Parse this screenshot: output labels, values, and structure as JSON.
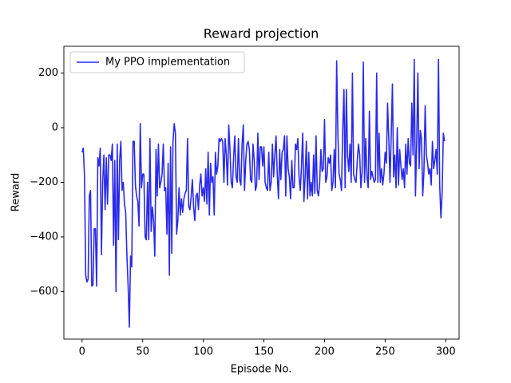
{
  "chart_data": {
    "type": "line",
    "title": "Reward projection",
    "x_label": "Episode No.",
    "y_label": "Reward",
    "legend": "upper left",
    "grid": false,
    "xlim": [
      -15,
      311
    ],
    "ylim": [
      -774,
      298
    ],
    "xticks": [
      0,
      50,
      100,
      150,
      200,
      250,
      300
    ],
    "yticks": [
      {
        "value": -600,
        "label": "−600"
      },
      {
        "value": -400,
        "label": "−400"
      },
      {
        "value": -200,
        "label": "−200"
      },
      0,
      200
    ],
    "x": [
      0,
      1,
      2,
      3,
      4,
      5,
      6,
      7,
      8,
      9,
      10,
      11,
      12,
      13,
      14,
      15,
      16,
      17,
      18,
      19,
      20,
      21,
      22,
      23,
      24,
      25,
      26,
      27,
      28,
      29,
      30,
      31,
      32,
      33,
      34,
      35,
      36,
      37,
      38,
      39,
      40,
      41,
      42,
      43,
      44,
      45,
      46,
      47,
      48,
      49,
      50,
      51,
      52,
      53,
      54,
      55,
      56,
      57,
      58,
      59,
      60,
      61,
      62,
      63,
      64,
      65,
      66,
      67,
      68,
      69,
      70,
      71,
      72,
      73,
      74,
      75,
      76,
      77,
      78,
      79,
      80,
      81,
      82,
      83,
      84,
      85,
      86,
      87,
      88,
      89,
      90,
      91,
      92,
      93,
      94,
      95,
      96,
      97,
      98,
      99,
      100,
      101,
      102,
      103,
      104,
      105,
      106,
      107,
      108,
      109,
      110,
      111,
      112,
      113,
      114,
      115,
      116,
      117,
      118,
      119,
      120,
      121,
      122,
      123,
      124,
      125,
      126,
      127,
      128,
      129,
      130,
      131,
      132,
      133,
      134,
      135,
      136,
      137,
      138,
      139,
      140,
      141,
      142,
      143,
      144,
      145,
      146,
      147,
      148,
      149,
      150,
      151,
      152,
      153,
      154,
      155,
      156,
      157,
      158,
      159,
      160,
      161,
      162,
      163,
      164,
      165,
      166,
      167,
      168,
      169,
      170,
      171,
      172,
      173,
      174,
      175,
      176,
      177,
      178,
      179,
      180,
      181,
      182,
      183,
      184,
      185,
      186,
      187,
      188,
      189,
      190,
      191,
      192,
      193,
      194,
      195,
      196,
      197,
      198,
      199,
      200,
      201,
      202,
      203,
      204,
      205,
      206,
      207,
      208,
      209,
      210,
      211,
      212,
      213,
      214,
      215,
      216,
      217,
      218,
      219,
      220,
      221,
      222,
      223,
      224,
      225,
      226,
      227,
      228,
      229,
      230,
      231,
      232,
      233,
      234,
      235,
      236,
      237,
      238,
      239,
      240,
      241,
      242,
      243,
      244,
      245,
      246,
      247,
      248,
      249,
      250,
      251,
      252,
      253,
      254,
      255,
      256,
      257,
      258,
      259,
      260,
      261,
      262,
      263,
      264,
      265,
      266,
      267,
      268,
      269,
      270,
      271,
      272,
      273,
      274,
      275,
      276,
      277,
      278,
      279,
      280,
      281,
      282,
      283,
      284,
      285,
      286,
      287,
      288,
      289,
      290,
      291,
      292,
      293,
      294,
      295,
      296,
      297,
      298,
      299
    ],
    "series": [
      {
        "name": "My PPO implementation",
        "color": "#2a2aea",
        "values": [
          -90,
          -75,
          -175,
          -540,
          -565,
          -555,
          -250,
          -230,
          -580,
          -575,
          -370,
          -370,
          -580,
          -110,
          -140,
          -75,
          -465,
          -200,
          -100,
          -300,
          -110,
          -280,
          -100,
          -100,
          -120,
          -60,
          -430,
          -120,
          -600,
          -60,
          -410,
          -120,
          -50,
          -230,
          -200,
          -280,
          -310,
          -470,
          -580,
          -730,
          -470,
          -510,
          -50,
          -50,
          -210,
          -250,
          -270,
          -360,
          15,
          -220,
          -170,
          -170,
          -400,
          -410,
          -200,
          -410,
          -40,
          -380,
          -290,
          -340,
          -470,
          -80,
          -250,
          -60,
          -220,
          -200,
          -170,
          -60,
          -230,
          -220,
          -390,
          -130,
          -540,
          -70,
          -460,
          -50,
          15,
          -20,
          -390,
          -340,
          -220,
          -320,
          -260,
          -310,
          -260,
          -240,
          -230,
          -40,
          -290,
          -300,
          -250,
          -190,
          -290,
          -340,
          -250,
          -240,
          -300,
          -210,
          -170,
          -250,
          -220,
          -270,
          -150,
          -280,
          -90,
          -320,
          -130,
          -200,
          -180,
          -320,
          -90,
          -170,
          -140,
          -40,
          -50,
          -40,
          -50,
          -200,
          -40,
          -100,
          -210,
          10,
          -80,
          -200,
          -220,
          -110,
          -30,
          -180,
          -200,
          -40,
          -190,
          -210,
          -60,
          10,
          -230,
          -120,
          -60,
          -50,
          -80,
          -190,
          -200,
          -60,
          -120,
          -230,
          -210,
          -20,
          -190,
          -70,
          -70,
          -140,
          -70,
          -200,
          -220,
          -230,
          -90,
          -230,
          -200,
          -60,
          -180,
          -100,
          -30,
          -170,
          -260,
          -80,
          -190,
          -90,
          -80,
          -30,
          -250,
          -30,
          -150,
          -180,
          -260,
          -120,
          -220,
          -220,
          -60,
          -80,
          -40,
          -180,
          -230,
          -140,
          -20,
          -270,
          -180,
          -50,
          -260,
          -90,
          -250,
          -200,
          -250,
          -100,
          -240,
          -30,
          -230,
          -250,
          -200,
          -80,
          -160,
          -150,
          30,
          -200,
          -180,
          -110,
          -130,
          -100,
          -230,
          -200,
          -80,
          -220,
          245,
          -20,
          -170,
          -190,
          -230,
          -10,
          140,
          -220,
          140,
          -100,
          -160,
          -60,
          -200,
          200,
          -170,
          -190,
          -200,
          -120,
          -60,
          -100,
          -220,
          -160,
          240,
          -200,
          -40,
          -180,
          -220,
          60,
          -190,
          -160,
          -180,
          -200,
          -190,
          200,
          -200,
          -20,
          -200,
          -150,
          -210,
          -170,
          -90,
          -130,
          90,
          -40,
          -200,
          -30,
          160,
          -180,
          -100,
          -220,
          0,
          -210,
          -80,
          -140,
          -190,
          -150,
          -220,
          -60,
          -170,
          -40,
          -130,
          -140,
          90,
          -100,
          250,
          -250,
          -60,
          200,
          -150,
          -10,
          -40,
          -250,
          -160,
          80,
          -100,
          -130,
          -170,
          -150,
          -210,
          -50,
          -150,
          -120,
          -80,
          -170,
          250,
          -210,
          -330,
          -240,
          -20,
          -50
        ]
      }
    ]
  }
}
